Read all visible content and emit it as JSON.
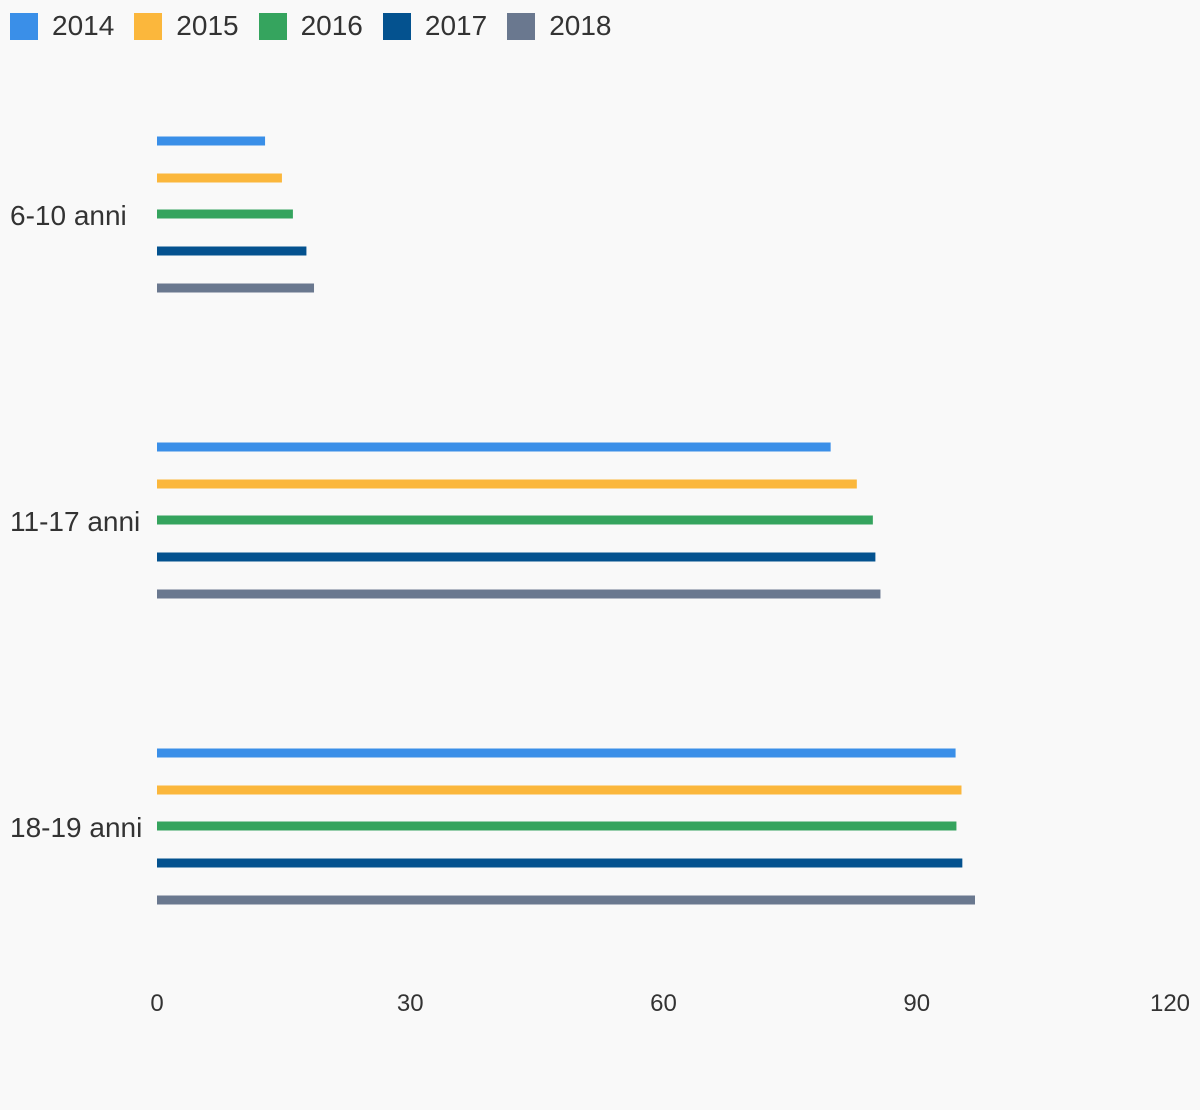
{
  "chart_data": {
    "type": "bar",
    "orientation": "horizontal",
    "categories": [
      "6-10 anni",
      "11-17 anni",
      "18-19 anni"
    ],
    "series": [
      {
        "name": "2014",
        "color": "#3a8fe8",
        "values": [
          12.8,
          79.8,
          94.6
        ]
      },
      {
        "name": "2015",
        "color": "#fbb73c",
        "values": [
          14.8,
          82.9,
          95.3
        ]
      },
      {
        "name": "2016",
        "color": "#35a45e",
        "values": [
          16.1,
          84.8,
          94.7
        ]
      },
      {
        "name": "2017",
        "color": "#04528f",
        "values": [
          17.7,
          85.1,
          95.4
        ]
      },
      {
        "name": "2018",
        "color": "#6a788f",
        "values": [
          18.6,
          85.7,
          96.9
        ]
      }
    ],
    "xlim": [
      0,
      120
    ],
    "xticks": [
      "0",
      "30",
      "60",
      "90",
      "120"
    ],
    "legend_position": "top-left",
    "grid": false,
    "title": "",
    "xlabel": "",
    "ylabel": ""
  }
}
